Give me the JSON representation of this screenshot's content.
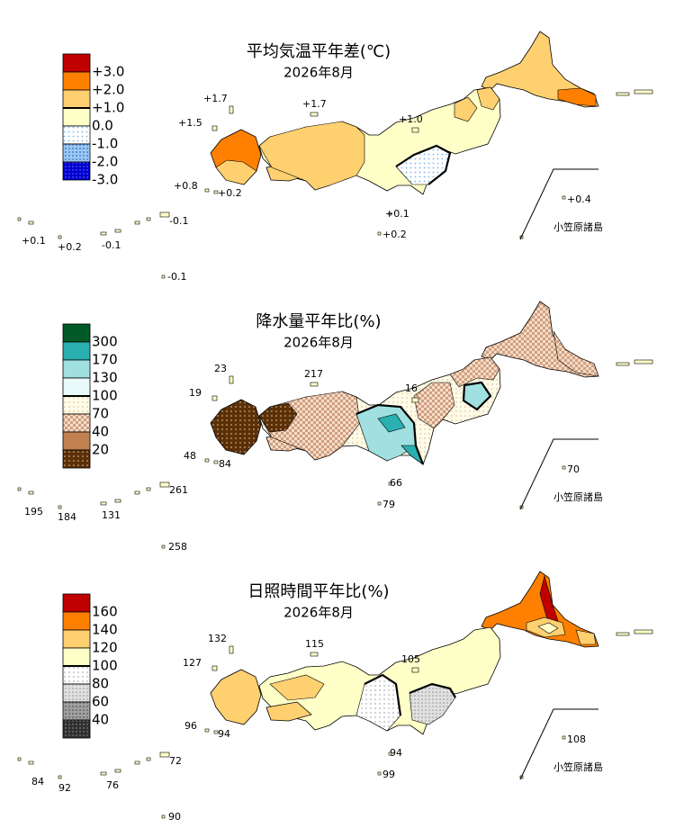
{
  "panels": [
    {
      "title": "平均気温平年差(℃)",
      "subtitle": "2026年8月",
      "legend": [
        "+3.0",
        "+2.0",
        "+1.0",
        "0.0",
        "-1.0",
        "-2.0",
        "-3.0"
      ],
      "annotations": [
        "+1.7",
        "+1.7",
        "+1.5",
        "+1.0",
        "+0.8",
        "+0.2",
        "+0.4",
        "+0.1",
        "-0.1",
        "+0.1",
        "+0.2",
        "-0.1",
        "+0.2",
        "-0.1"
      ],
      "inset_label": "小笠原諸島"
    },
    {
      "title": "降水量平年比(%)",
      "subtitle": "2026年8月",
      "legend": [
        "300",
        "170",
        "130",
        "100",
        "70",
        "40",
        "20"
      ],
      "annotations": [
        "23",
        "217",
        "19",
        "16",
        "48",
        "84",
        "70",
        "66",
        "261",
        "195",
        "184",
        "131",
        "79",
        "258"
      ],
      "inset_label": "小笠原諸島"
    },
    {
      "title": "日照時間平年比(%)",
      "subtitle": "2026年8月",
      "legend": [
        "160",
        "140",
        "120",
        "100",
        "80",
        "60",
        "40"
      ],
      "annotations": [
        "132",
        "115",
        "127",
        "105",
        "96",
        "94",
        "108",
        "94",
        "72",
        "84",
        "92",
        "76",
        "99",
        "90"
      ],
      "inset_label": "小笠原諸島"
    }
  ]
}
